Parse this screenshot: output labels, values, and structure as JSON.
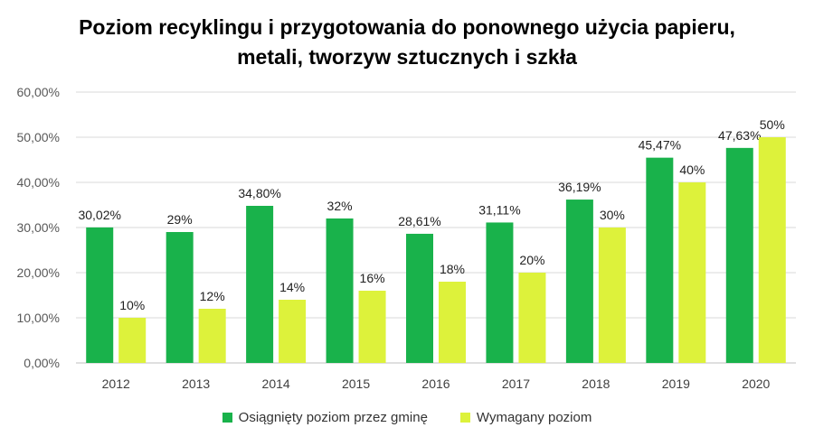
{
  "chart_data": {
    "type": "bar",
    "title": [
      "Poziom recyklingu i przygotowania do ponownego użycia papieru,",
      "metali, tworzyw sztucznych i szkła"
    ],
    "categories": [
      "2012",
      "2013",
      "2014",
      "2015",
      "2016",
      "2017",
      "2018",
      "2019",
      "2020"
    ],
    "series": [
      {
        "name": "Osiągnięty poziom przez gminę",
        "color": "#19B24B",
        "values": [
          30.02,
          29,
          34.8,
          32,
          28.61,
          31.11,
          36.19,
          45.47,
          47.63
        ],
        "labels": [
          "30,02%",
          "29%",
          "34,80%",
          "32%",
          "28,61%",
          "31,11%",
          "36,19%",
          "45,47%",
          "47,63%"
        ]
      },
      {
        "name": "Wymagany  poziom",
        "color": "#DDF23B",
        "values": [
          10,
          12,
          14,
          16,
          18,
          20,
          30,
          40,
          50
        ],
        "labels": [
          "10%",
          "12%",
          "14%",
          "16%",
          "18%",
          "20%",
          "30%",
          "40%",
          "50%"
        ]
      }
    ],
    "ylim": [
      0,
      60
    ],
    "yticks": [
      "0,00%",
      "10,00%",
      "20,00%",
      "30,00%",
      "40,00%",
      "50,00%",
      "60,00%"
    ],
    "grid": true,
    "legend_position": "bottom"
  }
}
